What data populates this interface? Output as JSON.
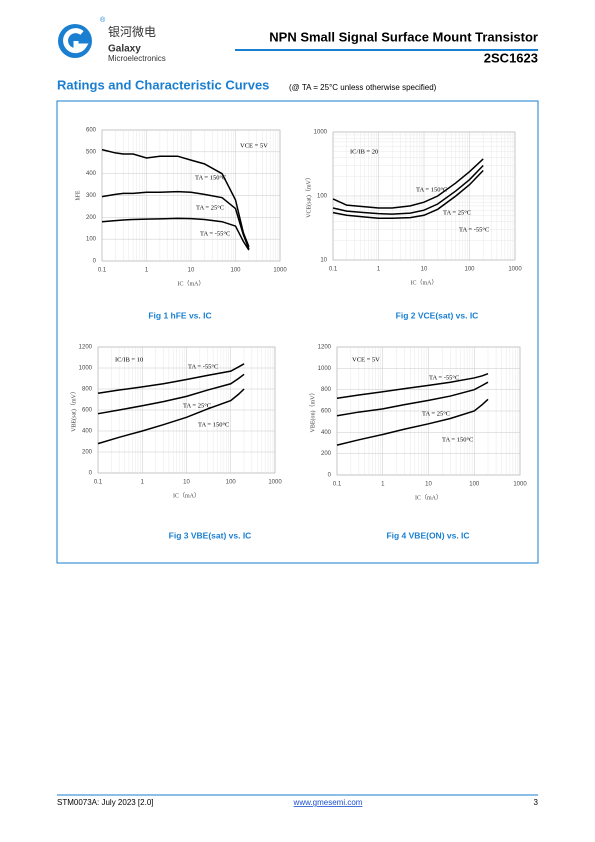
{
  "header": {
    "logo_mark": "®",
    "logo_cn": "银河微电",
    "logo_en1": "Galaxy",
    "logo_en2": "Microelectronics",
    "title": "NPN Small Signal Surface Mount Transistor",
    "part": "2SC1623"
  },
  "section": {
    "title": "Ratings and Characteristic Curves",
    "condition": "(@ TA = 25°C unless otherwise specified)"
  },
  "chart_data": [
    {
      "type": "line",
      "caption": "Fig 1   hFE vs. IC",
      "xlabel": "IC（mA）",
      "ylabel": "hFE",
      "annotation": "VCE = 5V",
      "xlog": true,
      "ylog": false,
      "grid": true,
      "x": [
        0.1,
        0.2,
        0.3,
        0.5,
        1,
        2,
        5,
        10,
        20,
        50,
        100,
        150,
        200
      ],
      "xlim": [
        0.1,
        1000
      ],
      "xticks": [
        0.1,
        1,
        10,
        100,
        1000
      ],
      "ylim": [
        0,
        600
      ],
      "yticks": [
        0,
        100,
        200,
        300,
        400,
        500,
        600
      ],
      "series": [
        {
          "name": "TA = 150°C",
          "color": "#000000",
          "values": [
            510,
            495,
            490,
            490,
            472,
            480,
            480,
            462,
            445,
            400,
            280,
            130,
            65
          ]
        },
        {
          "name": "TA = 25°C",
          "color": "#000000",
          "values": [
            295,
            305,
            310,
            310,
            315,
            315,
            318,
            315,
            305,
            290,
            240,
            120,
            55
          ]
        },
        {
          "name": "TA = -55°C",
          "color": "#000000",
          "values": [
            180,
            185,
            188,
            190,
            192,
            193,
            195,
            194,
            190,
            180,
            160,
            90,
            50
          ]
        }
      ]
    },
    {
      "type": "line",
      "caption": "Fig 2   VCE(sat) vs. IC",
      "xlabel": "IC（mA）",
      "ylabel": "VCE(sat)（mV）",
      "annotation": "IC/IB = 20",
      "xlog": true,
      "ylog": true,
      "grid": true,
      "x": [
        0.1,
        0.2,
        0.5,
        1,
        2,
        5,
        10,
        20,
        50,
        100,
        200
      ],
      "xlim": [
        0.1,
        1000
      ],
      "xticks": [
        0.1,
        1,
        10,
        100,
        1000
      ],
      "ylim": [
        10,
        1000
      ],
      "yticks": [
        10,
        100,
        1000
      ],
      "series": [
        {
          "name": "TA = 150°C",
          "color": "#000000",
          "values": [
            90,
            72,
            68,
            65,
            65,
            70,
            80,
            100,
            160,
            240,
            380
          ]
        },
        {
          "name": "TA = 25°C",
          "color": "#000000",
          "values": [
            65,
            58,
            55,
            53,
            52,
            54,
            60,
            75,
            120,
            180,
            300
          ]
        },
        {
          "name": "TA = -55°C",
          "color": "#000000",
          "values": [
            55,
            50,
            47,
            45,
            45,
            46,
            50,
            62,
            100,
            150,
            250
          ]
        }
      ]
    },
    {
      "type": "line",
      "caption": "Fig 3   VBE(sat) vs. IC",
      "xlabel": "IC（mA）",
      "ylabel": "VBE(sat)（mV）",
      "annotation": "IC/IB = 10",
      "xlog": true,
      "ylog": false,
      "grid": true,
      "x": [
        0.1,
        0.3,
        1,
        3,
        10,
        30,
        100,
        150,
        200
      ],
      "xlim": [
        0.1,
        1000
      ],
      "xticks": [
        0.1,
        1,
        10,
        100,
        1000
      ],
      "ylim": [
        0,
        1200
      ],
      "yticks": [
        0,
        200,
        400,
        600,
        800,
        1000,
        1200
      ],
      "series": [
        {
          "name": "TA = -55°C",
          "color": "#000000",
          "values": [
            760,
            790,
            820,
            850,
            890,
            930,
            970,
            1010,
            1040
          ]
        },
        {
          "name": "TA = 25°C",
          "color": "#000000",
          "values": [
            565,
            600,
            640,
            680,
            730,
            790,
            850,
            900,
            940
          ]
        },
        {
          "name": "TA = 150°C",
          "color": "#000000",
          "values": [
            280,
            340,
            400,
            460,
            530,
            610,
            690,
            750,
            800
          ]
        }
      ]
    },
    {
      "type": "line",
      "caption": "Fig 4   VBE(ON) vs. IC",
      "xlabel": "IC（mA）",
      "ylabel": "VBE(on)（mV）",
      "annotation": "VCE = 5V",
      "xlog": true,
      "ylog": false,
      "grid": true,
      "x": [
        0.1,
        0.3,
        1,
        3,
        10,
        30,
        100,
        150,
        200
      ],
      "xlim": [
        0.1,
        1000
      ],
      "xticks": [
        0.1,
        1,
        10,
        100,
        1000
      ],
      "ylim": [
        0,
        1200
      ],
      "yticks": [
        0,
        200,
        400,
        600,
        800,
        1000,
        1200
      ],
      "series": [
        {
          "name": "TA = -55°C",
          "color": "#000000",
          "values": [
            720,
            750,
            780,
            810,
            840,
            870,
            910,
            930,
            950
          ]
        },
        {
          "name": "TA = 25°C",
          "color": "#000000",
          "values": [
            555,
            590,
            620,
            660,
            700,
            740,
            800,
            840,
            870
          ]
        },
        {
          "name": "TA = 150°C",
          "color": "#000000",
          "values": [
            280,
            330,
            380,
            430,
            480,
            530,
            600,
            660,
            710
          ]
        }
      ]
    }
  ],
  "footer": {
    "doc": "STM0073A: July 2023 [2.0]",
    "url": "www.gmesemi.com",
    "page": "3"
  }
}
